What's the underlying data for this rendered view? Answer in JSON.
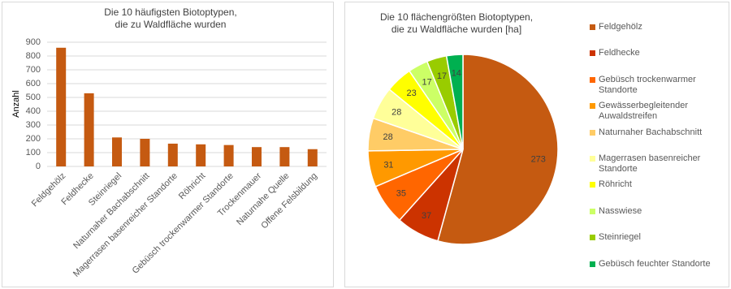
{
  "chart_data": [
    {
      "type": "bar",
      "title": [
        "Die 10 häufigsten Biotoptypen,",
        "die zu Waldfläche wurden"
      ],
      "y_label": "Anzahl",
      "categories": [
        "Feldgehölz",
        "Feldhecke",
        "Steinriegel",
        "Naturnaher Bachabschnitt",
        "Magerrasen basenreicher Standorte",
        "Röhricht",
        "Gebüsch trockenwarmer Standorte",
        "Trockenmauer",
        "Naturnahe Quelle",
        "Offene Felsbildung"
      ],
      "values": [
        860,
        530,
        210,
        200,
        165,
        160,
        155,
        140,
        140,
        125
      ],
      "color": "#c55a11",
      "ylim": [
        0,
        900
      ],
      "yticks": [
        0,
        100,
        200,
        300,
        400,
        500,
        600,
        700,
        800,
        900
      ],
      "grid": true
    },
    {
      "type": "pie",
      "title": [
        "Die 10 flächengrößten Biotoptypen,",
        "die zu Waldfläche wurden [ha]"
      ],
      "categories": [
        "Feldgehölz",
        "Feldhecke",
        "Gebüsch trockenwarmer Standorte",
        "Gewässerbegleitender Auwaldstreifen",
        "Naturnaher Bachabschnitt",
        "Magerrasen basenreicher Standorte",
        "Röhricht",
        "Nasswiese",
        "Steinriegel",
        "Gebüsch feuchter Standorte"
      ],
      "values": [
        273,
        37,
        35,
        31,
        28,
        28,
        23,
        17,
        17,
        14
      ],
      "colors": [
        "#c55a11",
        "#cc3300",
        "#ff6600",
        "#ff9900",
        "#ffcc66",
        "#ffff99",
        "#ffff00",
        "#ccff66",
        "#99cc00",
        "#00b050"
      ],
      "legend": "right"
    }
  ]
}
